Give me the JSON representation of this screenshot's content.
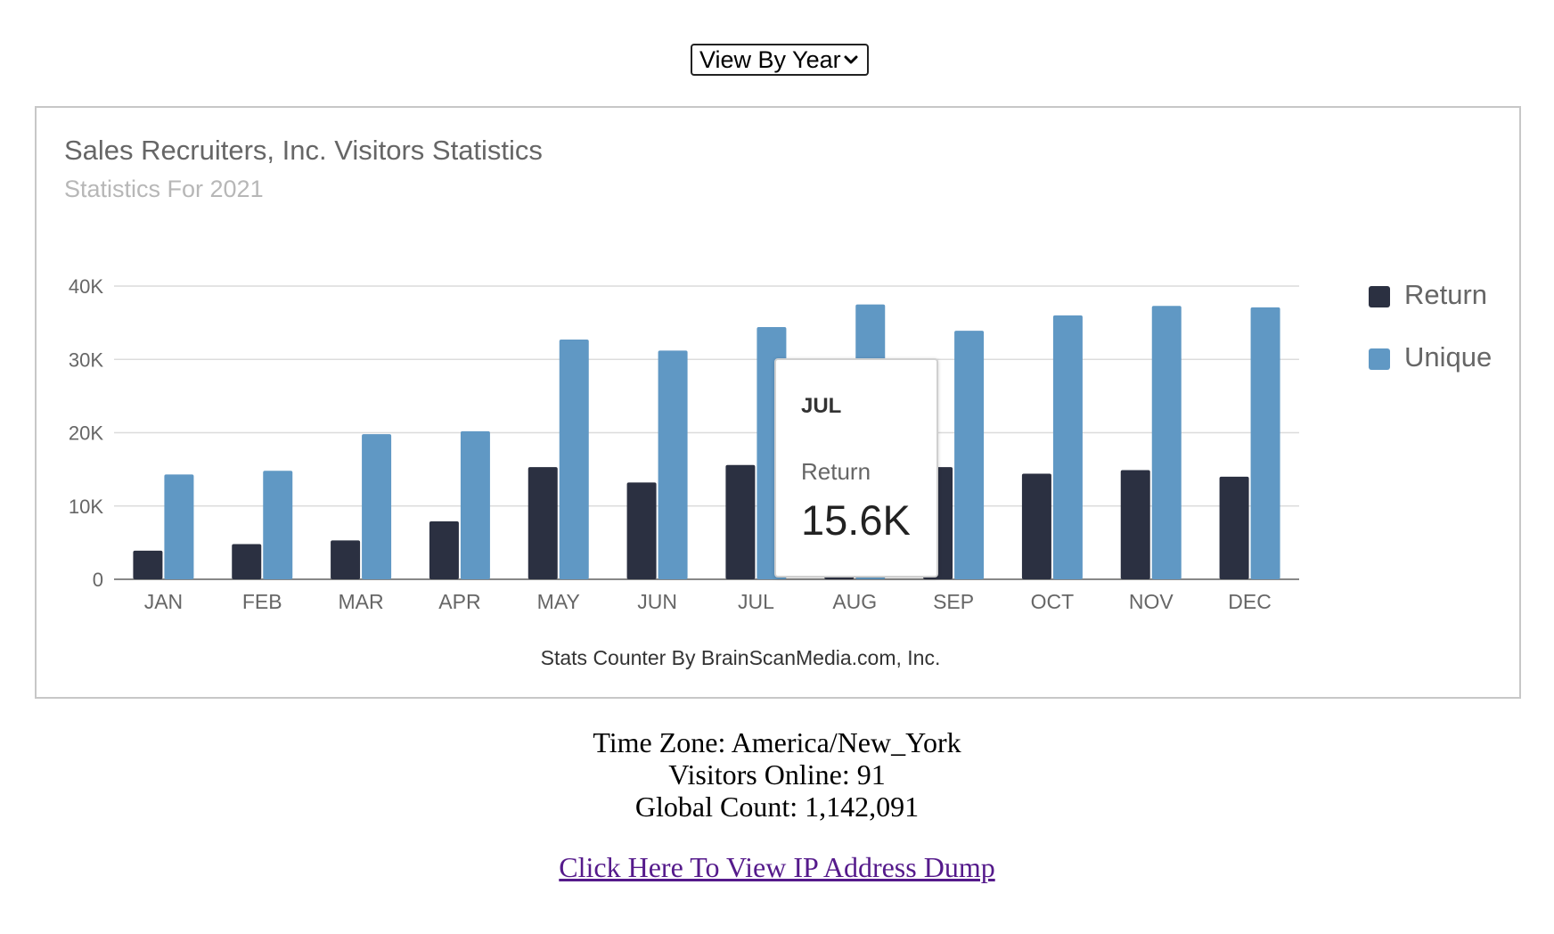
{
  "view_select": {
    "value": "View By Year"
  },
  "chart": {
    "title": "Sales Recruiters, Inc. Visitors Statistics",
    "subtitle": "Statistics For 2021",
    "credit": "Stats Counter By BrainScanMedia.com, Inc."
  },
  "chart_data": {
    "type": "bar",
    "categories": [
      "JAN",
      "FEB",
      "MAR",
      "APR",
      "MAY",
      "JUN",
      "JUL",
      "AUG",
      "SEP",
      "OCT",
      "NOV",
      "DEC"
    ],
    "series": [
      {
        "name": "Return",
        "color": "#2b3041",
        "values": [
          3900,
          4800,
          5300,
          7900,
          15300,
          13200,
          15600,
          15400,
          15300,
          14400,
          14900,
          14000
        ]
      },
      {
        "name": "Unique",
        "color": "#6098c4",
        "values": [
          14300,
          14800,
          19800,
          20200,
          32700,
          31200,
          34400,
          37500,
          33900,
          36000,
          37300,
          37100
        ]
      }
    ],
    "y_ticks": [
      "0",
      "10K",
      "20K",
      "30K",
      "40K"
    ],
    "ylim": [
      0,
      40000
    ],
    "grid": true,
    "legend_position": "right"
  },
  "tooltip": {
    "category": "JUL",
    "series": "Return",
    "value": "15.6K"
  },
  "footer": {
    "time_zone": "Time Zone: America/New_York",
    "visitors_online": "Visitors Online: 91",
    "global_count": "Global Count: 1,142,091",
    "link_text": "Click Here To View IP Address Dump"
  }
}
